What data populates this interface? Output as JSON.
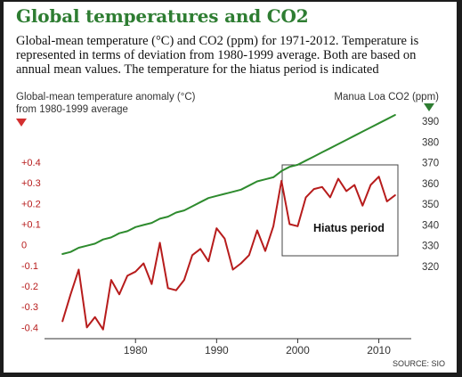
{
  "chart_data": {
    "type": "line",
    "title": "Global temperatures and CO2",
    "subtitle": "Global-mean temperature (°C) and CO2 (ppm) for 1971-2012. Temperature is represented in terms of deviation from 1980-1999 average. Both are based on annual mean values. The temperature for the hiatus period is indicated",
    "left_axis_label": [
      "Global-mean temperature anomaly (°C)",
      "from 1980-1999 average"
    ],
    "right_axis_label": "Manua Loa CO2 (ppm)",
    "left_ticks": [
      "+0.4",
      "+0.3",
      "+0.2",
      "+0.1",
      "0",
      "-0.1",
      "-0.2",
      "-0.3",
      "-0.4"
    ],
    "left_tick_values": [
      0.4,
      0.3,
      0.2,
      0.1,
      0,
      -0.1,
      -0.2,
      -0.3,
      -0.4
    ],
    "right_ticks": [
      "390",
      "380",
      "370",
      "360",
      "350",
      "340",
      "330",
      "320"
    ],
    "right_tick_values": [
      390,
      380,
      370,
      360,
      350,
      340,
      330,
      320
    ],
    "x_ticks": [
      "1980",
      "1990",
      "2000",
      "2010"
    ],
    "x_tick_values": [
      1980,
      1990,
      2000,
      2010
    ],
    "xlim": [
      1969,
      2014
    ],
    "ylim_left": [
      -0.42,
      0.4
    ],
    "ylim_right": [
      320,
      390
    ],
    "grid": false,
    "x": [
      1971,
      1972,
      1973,
      1974,
      1975,
      1976,
      1977,
      1978,
      1979,
      1980,
      1981,
      1982,
      1983,
      1984,
      1985,
      1986,
      1987,
      1988,
      1989,
      1990,
      1991,
      1992,
      1993,
      1994,
      1995,
      1996,
      1997,
      1998,
      1999,
      2000,
      2001,
      2002,
      2003,
      2004,
      2005,
      2006,
      2007,
      2008,
      2009,
      2010,
      2011,
      2012
    ],
    "series": [
      {
        "axis": "left",
        "color": "#b71c1c",
        "values": [
          -0.37,
          -0.24,
          -0.12,
          -0.4,
          -0.35,
          -0.41,
          -0.17,
          -0.24,
          -0.15,
          -0.13,
          -0.09,
          -0.19,
          0.01,
          -0.21,
          -0.22,
          -0.17,
          -0.05,
          -0.02,
          -0.08,
          0.08,
          0.03,
          -0.12,
          -0.09,
          -0.05,
          0.07,
          -0.03,
          0.09,
          0.31,
          0.1,
          0.09,
          0.23,
          0.27,
          0.28,
          0.23,
          0.32,
          0.26,
          0.29,
          0.19,
          0.29,
          0.33,
          0.21,
          0.24
        ]
      },
      {
        "axis": "right",
        "color": "#2e8b2e",
        "values": [
          326,
          327,
          329,
          330,
          331,
          333,
          334,
          336,
          337,
          339,
          340,
          341,
          343,
          344,
          346,
          347,
          349,
          351,
          353,
          354,
          355,
          356,
          357,
          359,
          361,
          362,
          363,
          366,
          368,
          369,
          371,
          373,
          375,
          377,
          379,
          381,
          383,
          385,
          387,
          389,
          391,
          393
        ]
      }
    ],
    "annotation": "Hiatus period",
    "hiatus_range": [
      1998,
      2012
    ],
    "source": "SOURCE: SIO"
  }
}
